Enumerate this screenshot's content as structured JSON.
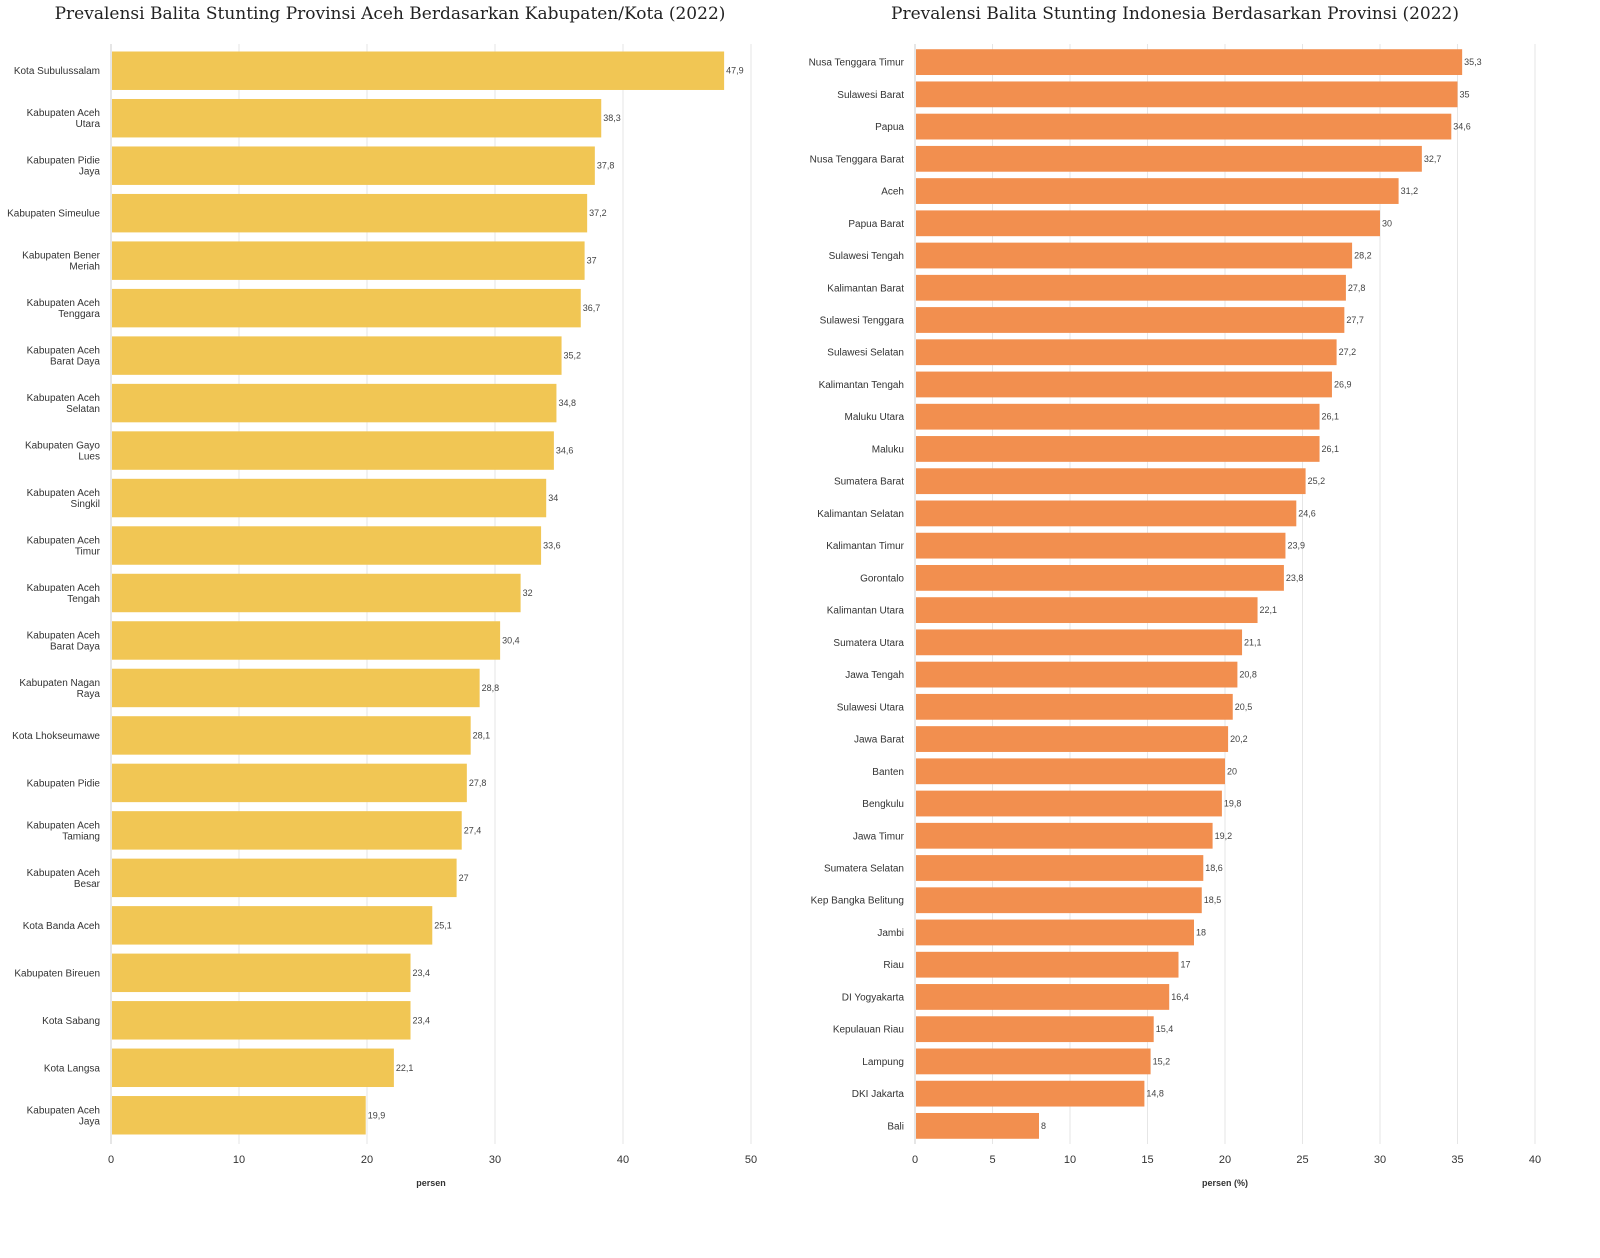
{
  "chart_data": [
    {
      "type": "bar",
      "orientation": "horizontal",
      "title": "Prevalensi Balita Stunting Provinsi Aceh Berdasarkan Kabupaten/Kota (2022)",
      "xlabel": "persen",
      "ylabel": "",
      "xlim": [
        0,
        50
      ],
      "ticks": [
        0,
        10,
        20,
        30,
        40,
        50
      ],
      "grid": true,
      "color": "#f1c654",
      "categories": [
        [
          "Kota Subulussalam"
        ],
        [
          "Kabupaten Aceh",
          "Utara"
        ],
        [
          "Kabupaten Pidie",
          "Jaya"
        ],
        [
          "Kabupaten Simeulue"
        ],
        [
          "Kabupaten Bener",
          "Meriah"
        ],
        [
          "Kabupaten Aceh",
          "Tenggara"
        ],
        [
          "Kabupaten Aceh",
          "Barat Daya"
        ],
        [
          "Kabupaten Aceh",
          "Selatan"
        ],
        [
          "Kabupaten Gayo",
          "Lues"
        ],
        [
          "Kabupaten Aceh",
          "Singkil"
        ],
        [
          "Kabupaten Aceh",
          "Timur"
        ],
        [
          "Kabupaten Aceh",
          "Tengah"
        ],
        [
          "Kabupaten Aceh",
          "Barat Daya"
        ],
        [
          "Kabupaten Nagan",
          "Raya"
        ],
        [
          "Kota Lhokseumawe"
        ],
        [
          "Kabupaten Pidie"
        ],
        [
          "Kabupaten Aceh",
          "Tamiang"
        ],
        [
          "Kabupaten Aceh",
          "Besar"
        ],
        [
          "Kota Banda Aceh"
        ],
        [
          "Kabupaten Bireuen"
        ],
        [
          "Kota Sabang"
        ],
        [
          "Kota Langsa"
        ],
        [
          "Kabupaten Aceh",
          "Jaya"
        ]
      ],
      "values": [
        47.9,
        38.3,
        37.8,
        37.2,
        37,
        36.7,
        35.2,
        34.8,
        34.6,
        34,
        33.6,
        32,
        30.4,
        28.8,
        28.1,
        27.8,
        27.4,
        27,
        25.1,
        23.4,
        23.4,
        22.1,
        19.9
      ],
      "value_labels": [
        "47,9",
        "38,3",
        "37,8",
        "37,2",
        "37",
        "36,7",
        "35,2",
        "34,8",
        "34,6",
        "34",
        "33,6",
        "32",
        "30,4",
        "28,8",
        "28,1",
        "27,8",
        "27,4",
        "27",
        "25,1",
        "23,4",
        "23,4",
        "22,1",
        "19,9"
      ]
    },
    {
      "type": "bar",
      "orientation": "horizontal",
      "title": "Prevalensi Balita Stunting Indonesia Berdasarkan Provinsi (2022)",
      "xlabel": "persen (%)",
      "ylabel": "",
      "xlim": [
        0,
        40
      ],
      "ticks": [
        0,
        5,
        10,
        15,
        20,
        25,
        30,
        35,
        40
      ],
      "grid": true,
      "color": "#f28f4f",
      "categories": [
        [
          "Nusa Tenggara Timur"
        ],
        [
          "Sulawesi Barat"
        ],
        [
          "Papua"
        ],
        [
          "Nusa Tenggara Barat"
        ],
        [
          "Aceh"
        ],
        [
          "Papua Barat"
        ],
        [
          "Sulawesi Tengah"
        ],
        [
          "Kalimantan Barat"
        ],
        [
          "Sulawesi Tenggara"
        ],
        [
          "Sulawesi Selatan"
        ],
        [
          "Kalimantan Tengah"
        ],
        [
          "Maluku Utara"
        ],
        [
          "Maluku"
        ],
        [
          "Sumatera Barat"
        ],
        [
          "Kalimantan Selatan"
        ],
        [
          "Kalimantan Timur"
        ],
        [
          "Gorontalo"
        ],
        [
          "Kalimantan Utara"
        ],
        [
          "Sumatera Utara"
        ],
        [
          "Jawa Tengah"
        ],
        [
          "Sulawesi Utara"
        ],
        [
          "Jawa Barat"
        ],
        [
          "Banten"
        ],
        [
          "Bengkulu"
        ],
        [
          "Jawa Timur"
        ],
        [
          "Sumatera Selatan"
        ],
        [
          "Kep Bangka Belitung"
        ],
        [
          "Jambi"
        ],
        [
          "Riau"
        ],
        [
          "DI Yogyakarta"
        ],
        [
          "Kepulauan Riau"
        ],
        [
          "Lampung"
        ],
        [
          "DKI Jakarta"
        ],
        [
          "Bali"
        ]
      ],
      "values": [
        35.3,
        35,
        34.6,
        32.7,
        31.2,
        30,
        28.2,
        27.8,
        27.7,
        27.2,
        26.9,
        26.1,
        26.1,
        25.2,
        24.6,
        23.9,
        23.8,
        22.1,
        21.1,
        20.8,
        20.5,
        20.2,
        20,
        19.8,
        19.2,
        18.6,
        18.5,
        18,
        17,
        16.4,
        15.4,
        15.2,
        14.8,
        8
      ],
      "value_labels": [
        "35,3",
        "35",
        "34,6",
        "32,7",
        "31,2",
        "30",
        "28,2",
        "27,8",
        "27,7",
        "27,2",
        "26,9",
        "26,1",
        "26,1",
        "25,2",
        "24,6",
        "23,9",
        "23,8",
        "22,1",
        "21,1",
        "20,8",
        "20,5",
        "20,2",
        "20",
        "19,8",
        "19,2",
        "18,6",
        "18,5",
        "18",
        "17",
        "16,4",
        "15,4",
        "15,2",
        "14,8",
        "8"
      ]
    }
  ]
}
